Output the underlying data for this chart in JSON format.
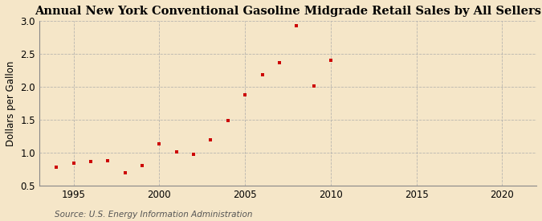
{
  "title": "Annual New York Conventional Gasoline Midgrade Retail Sales by All Sellers",
  "ylabel": "Dollars per Gallon",
  "source": "Source: U.S. Energy Information Administration",
  "years": [
    1994,
    1995,
    1996,
    1997,
    1998,
    1999,
    2000,
    2001,
    2002,
    2003,
    2004,
    2005,
    2006,
    2007,
    2008,
    2009,
    2010
  ],
  "values": [
    0.78,
    0.84,
    0.86,
    0.88,
    0.69,
    0.8,
    1.13,
    1.01,
    0.97,
    1.2,
    1.49,
    1.88,
    2.18,
    2.37,
    2.93,
    2.01,
    2.41
  ],
  "marker_color": "#cc0000",
  "background_color": "#f5e6c8",
  "grid_color": "#aaaaaa",
  "xlim": [
    1993,
    2022
  ],
  "ylim": [
    0.5,
    3.0
  ],
  "xticks": [
    1995,
    2000,
    2005,
    2010,
    2015,
    2020
  ],
  "yticks": [
    0.5,
    1.0,
    1.5,
    2.0,
    2.5,
    3.0
  ],
  "title_fontsize": 10.5,
  "tick_fontsize": 8.5,
  "ylabel_fontsize": 8.5,
  "source_fontsize": 7.5
}
